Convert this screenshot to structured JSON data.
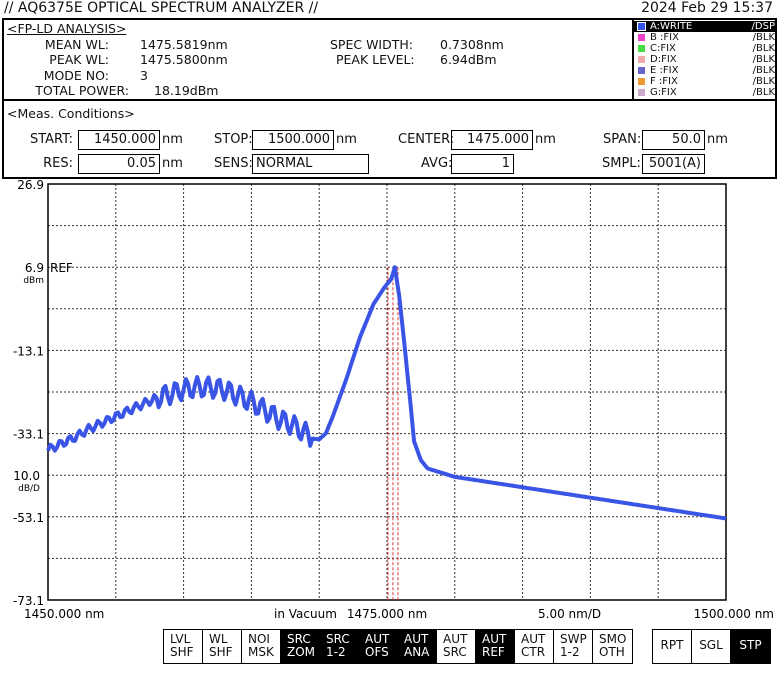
{
  "header": {
    "title": "// AQ6375E OPTICAL SPECTRUM ANALYZER //",
    "datetime": "2024 Feb 29 15:37"
  },
  "analysis": {
    "heading": "<FP-LD ANALYSIS>",
    "mean_wl_label": "MEAN WL:",
    "mean_wl": "1475.5819nm",
    "peak_wl_label": "PEAK WL:",
    "peak_wl": "1475.5800nm",
    "mode_no_label": "MODE NO:",
    "mode_no": "3",
    "total_power_label": "TOTAL POWER:",
    "total_power": "18.19dBm",
    "spec_width_label": "SPEC WIDTH:",
    "spec_width": "0.7308nm",
    "peak_level_label": "PEAK LEVEL:",
    "peak_level": "6.94dBm"
  },
  "traces": [
    {
      "name": "A:WRITE",
      "mode": "/DSP",
      "color": "#3355ee",
      "selected": true
    },
    {
      "name": "B :FIX",
      "mode": "/BLK",
      "color": "#ee44cc"
    },
    {
      "name": "C:FIX",
      "mode": "/BLK",
      "color": "#44dd44"
    },
    {
      "name": "D:FIX",
      "mode": "/BLK",
      "color": "#eeaaaa"
    },
    {
      "name": "E :FIX",
      "mode": "/BLK",
      "color": "#6666cc"
    },
    {
      "name": "F :FIX",
      "mode": "/BLK",
      "color": "#ee9933"
    },
    {
      "name": "G:FIX",
      "mode": "/BLK",
      "color": "#ccaacc"
    }
  ],
  "conditions": {
    "heading": "<Meas. Conditions>",
    "start_label": "START:",
    "start": "1450.000",
    "start_unit": "nm",
    "stop_label": "STOP:",
    "stop": "1500.000",
    "stop_unit": "nm",
    "center_label": "CENTER:",
    "center": "1475.000",
    "center_unit": "nm",
    "span_label": "SPAN:",
    "span": "50.0",
    "span_unit": "nm",
    "res_label": "RES:",
    "res": "0.05",
    "res_unit": "nm",
    "sens_label": "SENS:",
    "sens": "NORMAL",
    "avg_label": "AVG:",
    "avg": "1",
    "smpl_label": "SMPL:",
    "smpl": "5001(A)"
  },
  "chart_data": {
    "type": "line",
    "xlim": [
      1450,
      1500
    ],
    "ylim": [
      -73.1,
      26.9
    ],
    "x_divisions": 10,
    "y_divisions": 10,
    "ytick_labels": [
      "26.9",
      "6.9",
      "-13.1",
      "-33.1",
      "-53.1",
      "-73.1"
    ],
    "ytick_values": [
      26.9,
      6.9,
      -13.1,
      -33.1,
      -53.1,
      -73.1
    ],
    "ref_label": "REF",
    "ref_unit": "dBm",
    "scale": "10.0",
    "scale_unit": "dB/D",
    "x_labels": {
      "start": "1450.000 nm",
      "medium": "in Vacuum",
      "center": "1475.000 nm",
      "div": "5.00 nm/D",
      "stop": "1500.000 nm"
    },
    "markers_nm": [
      1475.07,
      1475.44,
      1475.81
    ],
    "series": [
      {
        "name": "A:WRITE",
        "color": "#3a55e6",
        "x": [
          1450,
          1451,
          1452,
          1453,
          1454,
          1455,
          1456,
          1457,
          1458,
          1459,
          1460,
          1461,
          1462,
          1463,
          1464,
          1465,
          1466,
          1467,
          1468,
          1469,
          1469.5,
          1470,
          1470.5,
          1471,
          1472,
          1473,
          1474,
          1474.8,
          1475.3,
          1475.58,
          1475.9,
          1476.3,
          1476.7,
          1477,
          1477.5,
          1478,
          1480,
          1485,
          1490,
          1495,
          1500
        ],
        "y": [
          -37,
          -35.5,
          -34,
          -32,
          -30.5,
          -29,
          -27.5,
          -26,
          -24.5,
          -23.5,
          -22.5,
          -22,
          -22,
          -22.5,
          -24,
          -25.5,
          -27.5,
          -29.5,
          -31,
          -33,
          -34.3,
          -34.5,
          -33,
          -29,
          -20,
          -10,
          -2,
          2,
          4,
          6.9,
          0,
          -12,
          -25,
          -35,
          -39.5,
          -41.5,
          -43.5,
          -46,
          -48.5,
          -51,
          -53.5
        ]
      }
    ]
  },
  "softkeys": [
    {
      "l1": "LVL",
      "l2": "SHF",
      "on": false
    },
    {
      "l1": "WL",
      "l2": "SHF",
      "on": false
    },
    {
      "l1": "NOI",
      "l2": "MSK",
      "on": false
    },
    {
      "l1": "SRC",
      "l2": "ZOM",
      "on": true
    },
    {
      "l1": "SRC",
      "l2": "1-2",
      "on": true
    },
    {
      "l1": "AUT",
      "l2": "OFS",
      "on": true
    },
    {
      "l1": "AUT",
      "l2": "ANA",
      "on": true
    },
    {
      "l1": "AUT",
      "l2": "SRC",
      "on": false
    },
    {
      "l1": "AUT",
      "l2": "REF",
      "on": true
    },
    {
      "l1": "AUT",
      "l2": "CTR",
      "on": false
    },
    {
      "l1": "SWP",
      "l2": "1-2",
      "on": false
    },
    {
      "l1": "SMO",
      "l2": "OTH",
      "on": false
    }
  ],
  "sweep_keys": [
    {
      "label": "RPT",
      "on": false
    },
    {
      "label": "SGL",
      "on": false
    },
    {
      "label": "STP",
      "on": true
    }
  ]
}
